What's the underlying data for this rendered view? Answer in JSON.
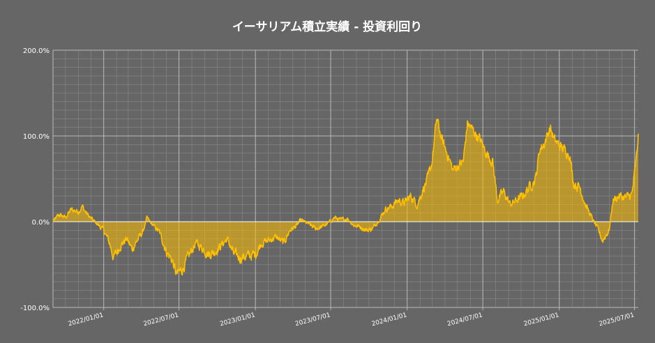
{
  "chart_data": {
    "type": "area",
    "title": "イーサリアム積立実績 - 投資利回り",
    "xlabel": "",
    "ylabel": "",
    "y_unit": "%",
    "ylim": [
      -100,
      200
    ],
    "yticks": [
      {
        "value": 200,
        "label": "200.0%"
      },
      {
        "value": 100,
        "label": "100.0%"
      },
      {
        "value": 0,
        "label": "0.0%"
      },
      {
        "value": -100,
        "label": "-100.0%"
      }
    ],
    "xlim": [
      "2021-09-01",
      "2025-07-10"
    ],
    "xticks": [
      {
        "date": "2022-01-01",
        "label": "2022/01/01"
      },
      {
        "date": "2022-07-01",
        "label": "2022/07/01"
      },
      {
        "date": "2023-01-01",
        "label": "2023/01/01"
      },
      {
        "date": "2023-07-01",
        "label": "2023/07/01"
      },
      {
        "date": "2024-01-01",
        "label": "2024/01/01"
      },
      {
        "date": "2024-07-01",
        "label": "2024/07/01"
      },
      {
        "date": "2025-01-01",
        "label": "2025/01/01"
      },
      {
        "date": "2025-07-01",
        "label": "2025/07/01"
      }
    ],
    "grid": true,
    "colors": {
      "background": "#666666",
      "grid": "#8a8a8a",
      "line": "#ffc000",
      "fill": "#ffc000"
    },
    "series": [
      {
        "values": [
          {
            "x": "2021-09-01",
            "y": 0
          },
          {
            "x": "2021-09-15",
            "y": 8
          },
          {
            "x": "2021-10-01",
            "y": 5
          },
          {
            "x": "2021-10-15",
            "y": 14
          },
          {
            "x": "2021-11-01",
            "y": 12
          },
          {
            "x": "2021-11-10",
            "y": 18
          },
          {
            "x": "2021-11-20",
            "y": 10
          },
          {
            "x": "2021-12-01",
            "y": 4
          },
          {
            "x": "2021-12-15",
            "y": -2
          },
          {
            "x": "2022-01-01",
            "y": -10
          },
          {
            "x": "2022-01-15",
            "y": -25
          },
          {
            "x": "2022-01-25",
            "y": -42
          },
          {
            "x": "2022-02-10",
            "y": -28
          },
          {
            "x": "2022-02-25",
            "y": -20
          },
          {
            "x": "2022-03-10",
            "y": -32
          },
          {
            "x": "2022-03-25",
            "y": -20
          },
          {
            "x": "2022-04-05",
            "y": -12
          },
          {
            "x": "2022-04-15",
            "y": 4
          },
          {
            "x": "2022-05-01",
            "y": -5
          },
          {
            "x": "2022-05-15",
            "y": -12
          },
          {
            "x": "2022-06-01",
            "y": -35
          },
          {
            "x": "2022-06-15",
            "y": -45
          },
          {
            "x": "2022-06-25",
            "y": -62
          },
          {
            "x": "2022-07-10",
            "y": -55
          },
          {
            "x": "2022-07-25",
            "y": -40
          },
          {
            "x": "2022-08-10",
            "y": -25
          },
          {
            "x": "2022-08-25",
            "y": -30
          },
          {
            "x": "2022-09-10",
            "y": -38
          },
          {
            "x": "2022-09-25",
            "y": -35
          },
          {
            "x": "2022-10-10",
            "y": -28
          },
          {
            "x": "2022-10-25",
            "y": -20
          },
          {
            "x": "2022-11-10",
            "y": -38
          },
          {
            "x": "2022-11-25",
            "y": -42
          },
          {
            "x": "2022-12-15",
            "y": -40
          },
          {
            "x": "2023-01-01",
            "y": -38
          },
          {
            "x": "2023-01-15",
            "y": -25
          },
          {
            "x": "2023-02-01",
            "y": -22
          },
          {
            "x": "2023-02-20",
            "y": -18
          },
          {
            "x": "2023-03-10",
            "y": -25
          },
          {
            "x": "2023-03-25",
            "y": -10
          },
          {
            "x": "2023-04-10",
            "y": -5
          },
          {
            "x": "2023-04-20",
            "y": 2
          },
          {
            "x": "2023-05-10",
            "y": -3
          },
          {
            "x": "2023-05-25",
            "y": -8
          },
          {
            "x": "2023-06-10",
            "y": -6
          },
          {
            "x": "2023-06-25",
            "y": -2
          },
          {
            "x": "2023-07-10",
            "y": 5
          },
          {
            "x": "2023-07-25",
            "y": 2
          },
          {
            "x": "2023-08-10",
            "y": 4
          },
          {
            "x": "2023-08-25",
            "y": -4
          },
          {
            "x": "2023-09-10",
            "y": -6
          },
          {
            "x": "2023-09-25",
            "y": -10
          },
          {
            "x": "2023-10-10",
            "y": -8
          },
          {
            "x": "2023-10-25",
            "y": 2
          },
          {
            "x": "2023-11-10",
            "y": 15
          },
          {
            "x": "2023-11-25",
            "y": 18
          },
          {
            "x": "2023-12-10",
            "y": 25
          },
          {
            "x": "2023-12-25",
            "y": 22
          },
          {
            "x": "2024-01-10",
            "y": 30
          },
          {
            "x": "2024-01-25",
            "y": 20
          },
          {
            "x": "2024-02-10",
            "y": 40
          },
          {
            "x": "2024-02-20",
            "y": 50
          },
          {
            "x": "2024-03-01",
            "y": 70
          },
          {
            "x": "2024-03-12",
            "y": 120
          },
          {
            "x": "2024-03-25",
            "y": 95
          },
          {
            "x": "2024-04-10",
            "y": 75
          },
          {
            "x": "2024-04-20",
            "y": 60
          },
          {
            "x": "2024-05-01",
            "y": 65
          },
          {
            "x": "2024-05-15",
            "y": 70
          },
          {
            "x": "2024-05-25",
            "y": 115
          },
          {
            "x": "2024-06-10",
            "y": 105
          },
          {
            "x": "2024-06-25",
            "y": 95
          },
          {
            "x": "2024-07-10",
            "y": 80
          },
          {
            "x": "2024-07-25",
            "y": 70
          },
          {
            "x": "2024-08-05",
            "y": 25
          },
          {
            "x": "2024-08-20",
            "y": 35
          },
          {
            "x": "2024-09-05",
            "y": 20
          },
          {
            "x": "2024-09-20",
            "y": 25
          },
          {
            "x": "2024-10-05",
            "y": 30
          },
          {
            "x": "2024-10-20",
            "y": 40
          },
          {
            "x": "2024-11-05",
            "y": 50
          },
          {
            "x": "2024-11-15",
            "y": 85
          },
          {
            "x": "2024-11-25",
            "y": 90
          },
          {
            "x": "2024-12-10",
            "y": 110
          },
          {
            "x": "2024-12-20",
            "y": 95
          },
          {
            "x": "2025-01-10",
            "y": 85
          },
          {
            "x": "2025-01-25",
            "y": 80
          },
          {
            "x": "2025-02-05",
            "y": 45
          },
          {
            "x": "2025-02-20",
            "y": 40
          },
          {
            "x": "2025-03-05",
            "y": 20
          },
          {
            "x": "2025-03-20",
            "y": 5
          },
          {
            "x": "2025-04-05",
            "y": -10
          },
          {
            "x": "2025-04-15",
            "y": -22
          },
          {
            "x": "2025-05-01",
            "y": -10
          },
          {
            "x": "2025-05-10",
            "y": 25
          },
          {
            "x": "2025-05-25",
            "y": 30
          },
          {
            "x": "2025-06-10",
            "y": 28
          },
          {
            "x": "2025-06-25",
            "y": 32
          },
          {
            "x": "2025-07-01",
            "y": 55
          },
          {
            "x": "2025-07-07",
            "y": 80
          },
          {
            "x": "2025-07-10",
            "y": 100
          }
        ]
      }
    ]
  }
}
